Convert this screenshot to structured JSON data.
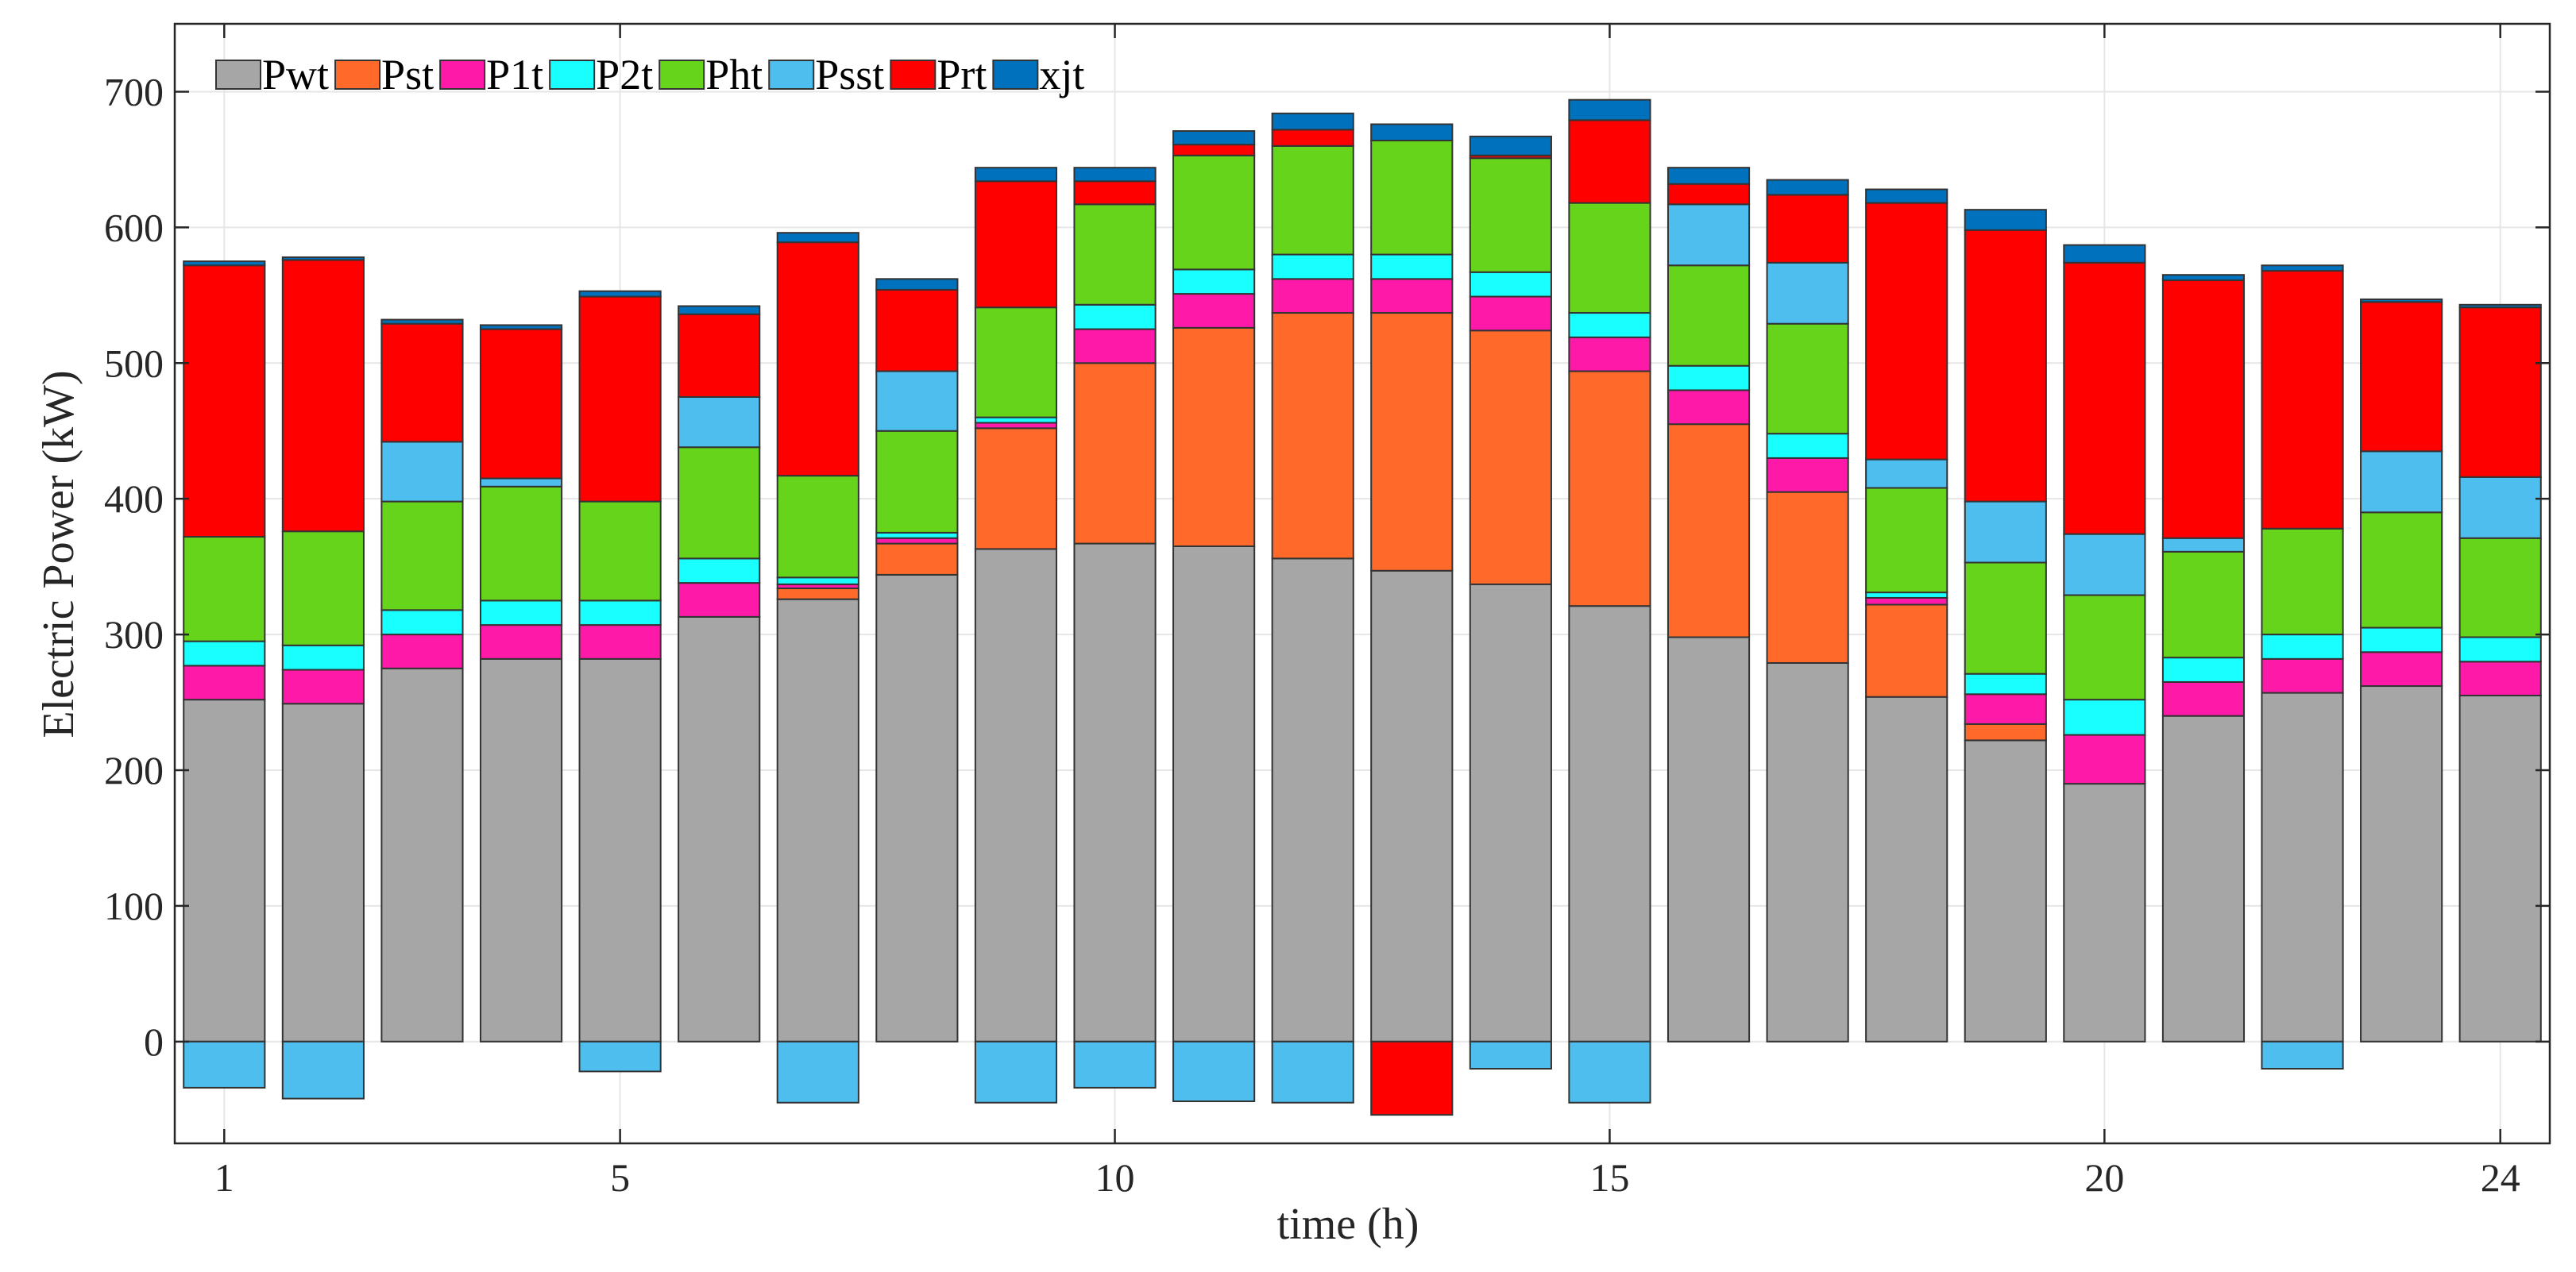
{
  "chart_data": {
    "type": "bar",
    "stacked": true,
    "title": "",
    "xlabel": "time (h)",
    "ylabel": "Electric Power (kW)",
    "xlim": [
      0.5,
      24.5
    ],
    "ylim": [
      -75,
      750
    ],
    "xticks": [
      1,
      5,
      10,
      15,
      20,
      24
    ],
    "yticks": [
      0,
      100,
      200,
      300,
      400,
      500,
      600,
      700
    ],
    "grid": true,
    "legend_position": "top-left",
    "categories": [
      1,
      2,
      3,
      4,
      5,
      6,
      7,
      8,
      9,
      10,
      11,
      12,
      13,
      14,
      15,
      16,
      17,
      18,
      19,
      20,
      21,
      22,
      23,
      24
    ],
    "series": [
      {
        "name": "Pwt",
        "color": "#a6a6a6",
        "values": [
          252,
          249,
          275,
          282,
          282,
          313,
          326,
          344,
          363,
          367,
          365,
          356,
          347,
          337,
          321,
          298,
          279,
          254,
          222,
          190,
          240,
          257,
          262,
          255
        ]
      },
      {
        "name": "Pst",
        "color": "#ff6a2a",
        "values": [
          0,
          0,
          0,
          0,
          0,
          0,
          8,
          23,
          89,
          133,
          161,
          181,
          190,
          187,
          173,
          157,
          126,
          68,
          12,
          0,
          0,
          0,
          0,
          0
        ]
      },
      {
        "name": "P1t",
        "color": "#ff19a8",
        "values": [
          25,
          25,
          25,
          25,
          25,
          25,
          3,
          4,
          4,
          25,
          25,
          25,
          25,
          25,
          25,
          25,
          25,
          5,
          22,
          36,
          25,
          25,
          25,
          25
        ]
      },
      {
        "name": "P2t",
        "color": "#19ffff",
        "values": [
          18,
          18,
          18,
          18,
          18,
          18,
          5,
          4,
          4,
          18,
          18,
          18,
          18,
          18,
          18,
          18,
          18,
          4,
          15,
          26,
          18,
          18,
          18,
          18
        ]
      },
      {
        "name": "Pht",
        "color": "#66d41a",
        "values": [
          77,
          84,
          80,
          84,
          73,
          82,
          75,
          75,
          81,
          74,
          84,
          80,
          84,
          84,
          81,
          74,
          81,
          77,
          82,
          77,
          78,
          78,
          85,
          73
        ]
      },
      {
        "name": "Psst",
        "color": "#4dbeee",
        "values": [
          -34,
          -42,
          44,
          6,
          -22,
          37,
          -45,
          44,
          -45,
          -34,
          -44,
          -45,
          0,
          -20,
          -45,
          45,
          45,
          21,
          45,
          45,
          10,
          -20,
          45,
          45
        ]
      },
      {
        "name": "Prt",
        "color": "#ff0000",
        "values": [
          200,
          200,
          87,
          110,
          151,
          61,
          172,
          60,
          93,
          17,
          8,
          12,
          -54,
          2,
          61,
          15,
          50,
          189,
          200,
          200,
          190,
          190,
          110,
          125
        ]
      },
      {
        "name": "xjt",
        "color": "#0072bd",
        "values": [
          3,
          2,
          3,
          3,
          4,
          6,
          7,
          8,
          10,
          10,
          10,
          12,
          12,
          14,
          15,
          12,
          11,
          10,
          15,
          13,
          4,
          4,
          2,
          2
        ]
      }
    ]
  }
}
